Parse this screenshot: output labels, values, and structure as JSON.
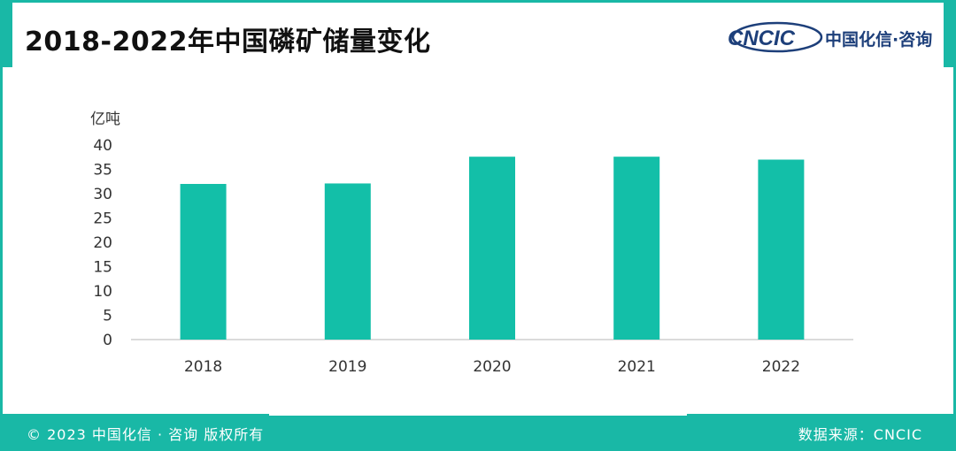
{
  "header": {
    "title": "2018-2022年中国磷矿储量变化",
    "logo_mark": "CNCIC",
    "logo_text": "中国化信·咨询"
  },
  "colors": {
    "accent": "#19b8a6",
    "bar": "#13bfa8",
    "logo": "#1d3f7a"
  },
  "footer": {
    "copyright": "© 2023 中国化信 · 咨询 版权所有",
    "source": "数据来源：CNCIC"
  },
  "chart_data": {
    "type": "bar",
    "categories": [
      "2018",
      "2019",
      "2020",
      "2021",
      "2022"
    ],
    "values": [
      32,
      32.1,
      37.6,
      37.6,
      37
    ],
    "ylabel": "亿吨",
    "ylim": [
      0,
      40
    ],
    "yticks": [
      0,
      5,
      10,
      15,
      20,
      25,
      30,
      35,
      40
    ],
    "grid": false,
    "legend": "none"
  }
}
